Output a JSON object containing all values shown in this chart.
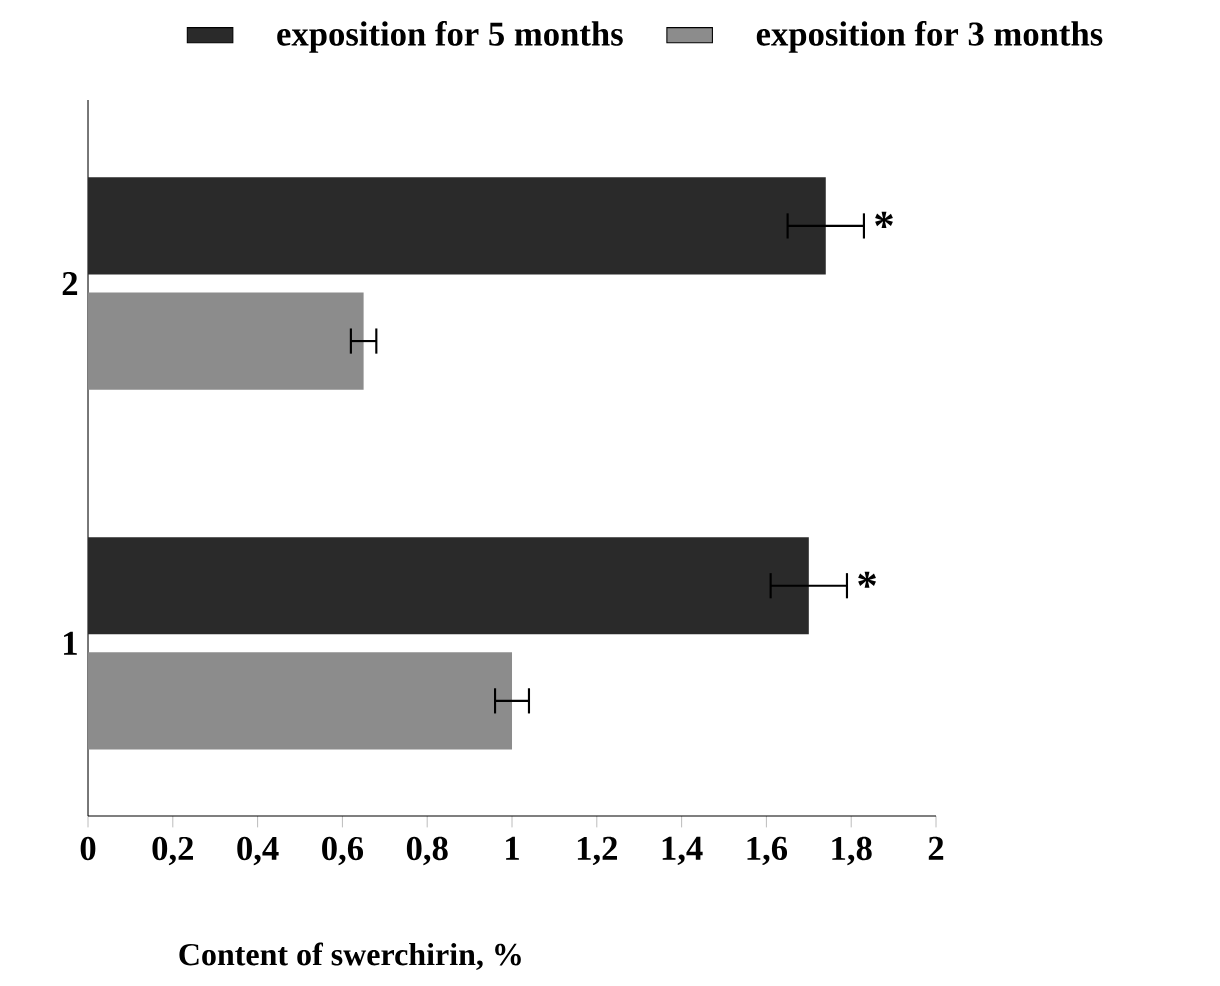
{
  "chart_data": {
    "type": "bar",
    "orientation": "horizontal",
    "xlabel": "Content of swerchirin, %",
    "categories": [
      "2",
      "1"
    ],
    "series": [
      {
        "name": "exposition for 5 months",
        "color": "#2a2a2a",
        "values": [
          1.74,
          1.7
        ],
        "errors": [
          0.09,
          0.09
        ]
      },
      {
        "name": "exposition for 3 months",
        "color": "#8c8c8c",
        "values": [
          0.65,
          1.0
        ],
        "errors": [
          0.03,
          0.04
        ]
      }
    ],
    "xlim": [
      0,
      2
    ],
    "xticks": [
      0,
      {
        "value": 0.2,
        "label": "0,2"
      },
      {
        "value": 0.4,
        "label": "0,4"
      },
      {
        "value": 0.6,
        "label": "0,6"
      },
      {
        "value": 0.8,
        "label": "0,8"
      },
      1,
      {
        "value": 1.2,
        "label": "1,2"
      },
      {
        "value": 1.4,
        "label": "1,4"
      },
      {
        "value": 1.6,
        "label": "1,6"
      },
      {
        "value": 1.8,
        "label": "1,8"
      },
      2
    ],
    "annotations": [
      "*",
      "*"
    ],
    "legend": "top",
    "grid": false
  }
}
